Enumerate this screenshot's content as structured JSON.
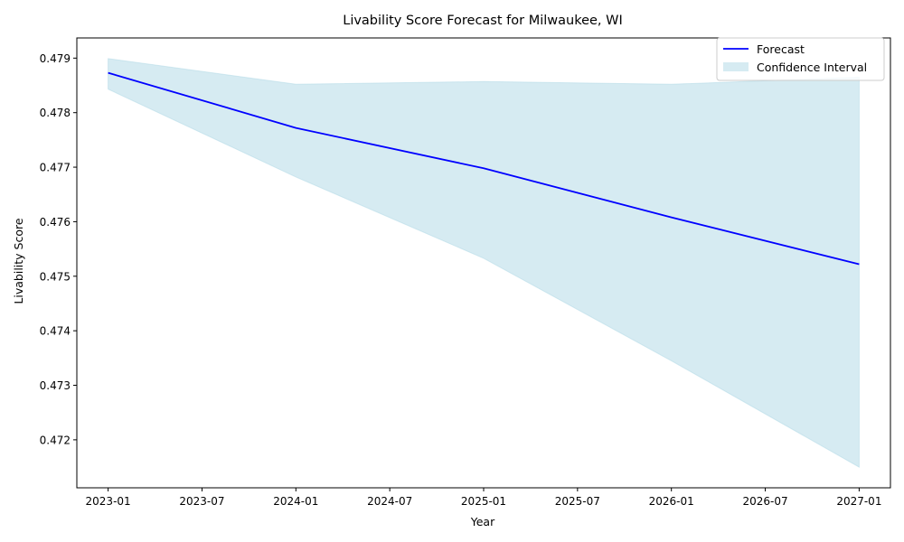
{
  "chart_data": {
    "type": "line",
    "title": "Livability Score Forecast for Milwaukee, WI",
    "xlabel": "Year",
    "ylabel": "Livability Score",
    "x": [
      "2023-01",
      "2024-01",
      "2025-01",
      "2026-01",
      "2027-01"
    ],
    "series": [
      {
        "name": "Forecast",
        "color": "#0000ff",
        "values": [
          0.47873,
          0.47772,
          0.47698,
          0.47608,
          0.47522
        ]
      }
    ],
    "confidence_interval": {
      "name": "Confidence Interval",
      "color": "#add8e6",
      "lower": [
        0.47843,
        0.47682,
        0.47533,
        0.47345,
        0.4715
      ],
      "upper": [
        0.47899,
        0.47852,
        0.47857,
        0.47852,
        0.47865
      ]
    },
    "x_ticks": [
      "2023-01",
      "2023-07",
      "2024-01",
      "2024-07",
      "2025-01",
      "2025-07",
      "2026-01",
      "2026-07",
      "2027-01"
    ],
    "y_ticks": [
      "0.472",
      "0.473",
      "0.474",
      "0.475",
      "0.476",
      "0.477",
      "0.478",
      "0.479"
    ],
    "ylim": [
      0.47112,
      0.47937
    ],
    "xlim": [
      "2022-11",
      "2027-03"
    ],
    "grid": false,
    "legend_position": "upper-right"
  }
}
